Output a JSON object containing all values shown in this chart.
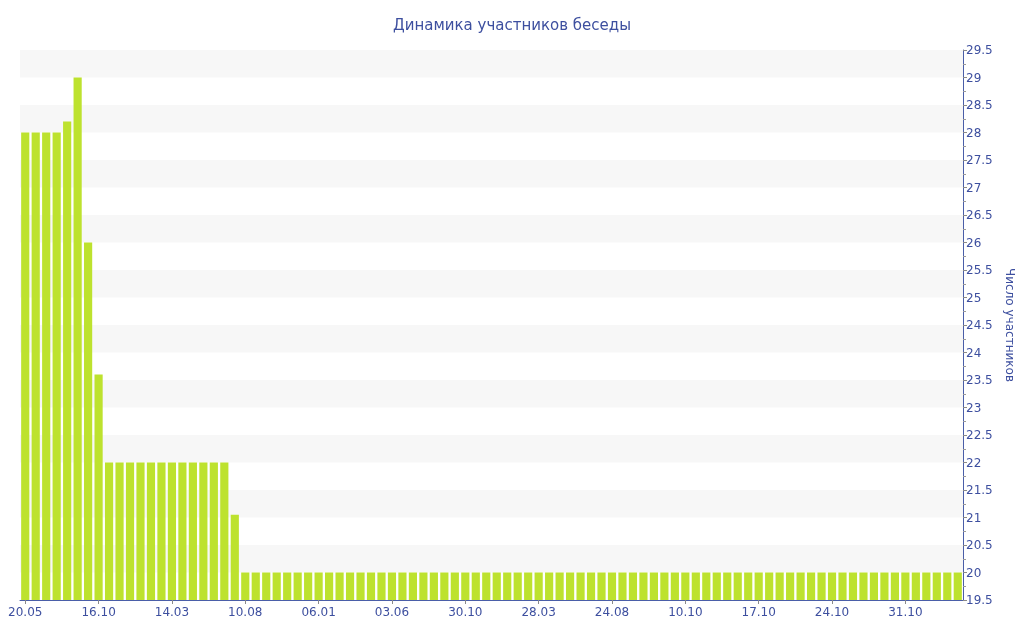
{
  "chart_data": {
    "type": "bar",
    "title": "Динамика участников беседы",
    "ylabel": "Число участников",
    "categories": [
      "20.05",
      null,
      null,
      null,
      null,
      null,
      null,
      "16.10",
      null,
      null,
      null,
      null,
      null,
      null,
      "14.03",
      null,
      null,
      null,
      null,
      null,
      null,
      "10.08",
      null,
      null,
      null,
      null,
      null,
      null,
      "06.01",
      null,
      null,
      null,
      null,
      null,
      null,
      "03.06",
      null,
      null,
      null,
      null,
      null,
      null,
      "30.10",
      null,
      null,
      null,
      null,
      null,
      null,
      "28.03",
      null,
      null,
      null,
      null,
      null,
      null,
      "24.08",
      null,
      null,
      null,
      null,
      null,
      null,
      "10.10",
      null,
      null,
      null,
      null,
      null,
      null,
      "17.10",
      null,
      null,
      null,
      null,
      null,
      null,
      "24.10",
      null,
      null,
      null,
      null,
      null,
      null,
      "31.10",
      null,
      null,
      null,
      null,
      null
    ],
    "values": [
      28,
      28,
      28,
      28,
      28.2,
      29,
      26,
      23.6,
      22,
      22,
      22,
      22,
      22,
      22,
      22,
      22,
      22,
      22,
      22,
      22,
      21.05,
      20,
      20,
      20,
      20,
      20,
      20,
      20,
      20,
      20,
      20,
      20,
      20,
      20,
      20,
      20,
      20,
      20,
      20,
      20,
      20,
      20,
      20,
      20,
      20,
      20,
      20,
      20,
      20,
      20,
      20,
      20,
      20,
      20,
      20,
      20,
      20,
      20,
      20,
      20,
      20,
      20,
      20,
      20,
      20,
      20,
      20,
      20,
      20,
      20,
      20,
      20,
      20,
      20,
      20,
      20,
      20,
      20,
      20,
      20,
      20,
      20,
      20,
      20,
      20,
      20,
      20,
      20,
      20,
      20
    ],
    "color": "#bde22e",
    "ylim": [
      19.5,
      29.5
    ],
    "yticks": [
      19.5,
      20,
      20.5,
      21,
      21.5,
      22,
      22.5,
      23,
      23.5,
      24,
      24.5,
      25,
      25.5,
      26,
      26.5,
      27,
      27.5,
      28,
      28.5,
      29,
      29.5
    ],
    "bands": [
      {
        "axis": "y",
        "from": 20,
        "to": 20.5,
        "color": "#f7f7f7"
      },
      {
        "axis": "y",
        "from": 21,
        "to": 21.5,
        "color": "#f7f7f7"
      },
      {
        "axis": "y",
        "from": 22,
        "to": 22.5,
        "color": "#f7f7f7"
      },
      {
        "axis": "y",
        "from": 23,
        "to": 23.5,
        "color": "#f7f7f7"
      },
      {
        "axis": "y",
        "from": 24,
        "to": 24.5,
        "color": "#f7f7f7"
      },
      {
        "axis": "y",
        "from": 25,
        "to": 25.5,
        "color": "#f7f7f7"
      },
      {
        "axis": "y",
        "from": 26,
        "to": 26.5,
        "color": "#f7f7f7"
      },
      {
        "axis": "y",
        "from": 27,
        "to": 27.5,
        "color": "#f7f7f7"
      },
      {
        "axis": "y",
        "from": 28,
        "to": 28.5,
        "color": "#f7f7f7"
      },
      {
        "axis": "y",
        "from": 29,
        "to": 29.5,
        "color": "#f7f7f7"
      }
    ]
  }
}
